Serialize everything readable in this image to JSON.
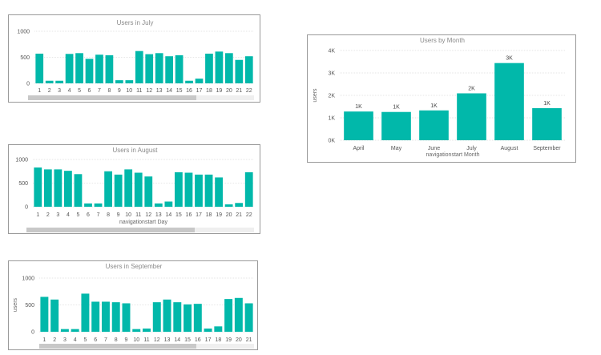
{
  "colors": {
    "bar": "#01b8aa",
    "grid": "#e6e6e6",
    "scroll_thumb": "#c8c8c8",
    "scroll_track": "#efefef"
  },
  "chart_data": [
    {
      "id": "july",
      "type": "bar",
      "title": "Users in July",
      "xlabel": "",
      "ylabel": "",
      "ylim": [
        0,
        1000
      ],
      "yticks": [
        "0",
        "500",
        "1000"
      ],
      "categories": [
        "1",
        "2",
        "3",
        "4",
        "5",
        "6",
        "7",
        "8",
        "9",
        "10",
        "11",
        "12",
        "13",
        "14",
        "15",
        "16",
        "17",
        "18",
        "19",
        "20",
        "21",
        "22"
      ],
      "values": [
        570,
        50,
        50,
        565,
        580,
        470,
        550,
        540,
        60,
        60,
        620,
        560,
        580,
        520,
        540,
        50,
        90,
        570,
        610,
        580,
        450,
        520
      ],
      "scrollbar": true
    },
    {
      "id": "august",
      "type": "bar",
      "title": "Users in August",
      "xlabel": "navigationstart Day",
      "ylabel": "",
      "ylim": [
        0,
        1000
      ],
      "yticks": [
        "0",
        "500",
        "1000"
      ],
      "categories": [
        "1",
        "2",
        "3",
        "4",
        "5",
        "6",
        "7",
        "8",
        "9",
        "10",
        "11",
        "12",
        "13",
        "14",
        "15",
        "16",
        "17",
        "18",
        "19",
        "20",
        "21",
        "22"
      ],
      "values": [
        830,
        790,
        790,
        760,
        690,
        70,
        70,
        750,
        680,
        790,
        720,
        640,
        70,
        110,
        730,
        720,
        680,
        680,
        620,
        50,
        80,
        730
      ],
      "scrollbar": true
    },
    {
      "id": "september",
      "type": "bar",
      "title": "Users in September",
      "xlabel": "",
      "ylabel": "users",
      "ylim": [
        0,
        1000
      ],
      "yticks": [
        "0",
        "500",
        "1000"
      ],
      "categories": [
        "1",
        "2",
        "3",
        "4",
        "5",
        "6",
        "7",
        "8",
        "9",
        "10",
        "11",
        "12",
        "13",
        "14",
        "15",
        "16",
        "17",
        "18",
        "19",
        "20",
        "21"
      ],
      "values": [
        650,
        600,
        50,
        50,
        710,
        560,
        560,
        550,
        530,
        50,
        60,
        550,
        600,
        550,
        510,
        520,
        60,
        100,
        610,
        630,
        530
      ],
      "scrollbar": true
    },
    {
      "id": "month",
      "type": "bar",
      "title": "Users by Month",
      "xlabel": "navigationstart Month",
      "ylabel": "users",
      "ylim": [
        0,
        4000
      ],
      "yticks": [
        "0K",
        "1K",
        "2K",
        "3K",
        "4K"
      ],
      "categories": [
        "April",
        "May",
        "June",
        "July",
        "August",
        "September"
      ],
      "values": [
        1280,
        1260,
        1330,
        2090,
        3440,
        1430
      ],
      "data_labels": [
        "1K",
        "1K",
        "1K",
        "2K",
        "3K",
        "1K"
      ],
      "scrollbar": false
    }
  ]
}
